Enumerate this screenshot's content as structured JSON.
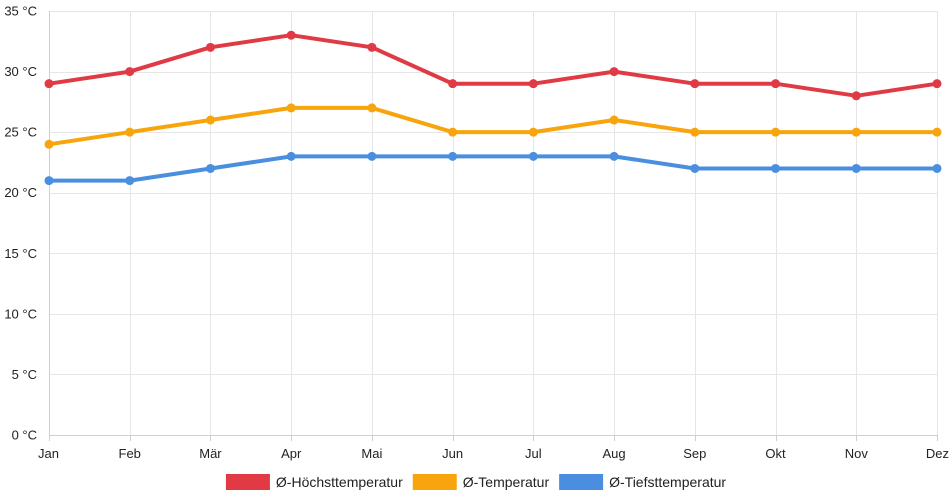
{
  "chart_data": {
    "type": "line",
    "categories": [
      "Jan",
      "Feb",
      "Mär",
      "Apr",
      "Mai",
      "Jun",
      "Jul",
      "Aug",
      "Sep",
      "Okt",
      "Nov",
      "Dez"
    ],
    "y_ticks": [
      "0 °C",
      "5 °C",
      "10 °C",
      "15 °C",
      "20 °C",
      "25 °C",
      "30 °C",
      "35 °C"
    ],
    "ylim": [
      0,
      35
    ],
    "y_step": 5,
    "grid": true,
    "legend_position": "bottom-center",
    "series": [
      {
        "name": "Ø-Höchsttemperatur",
        "color": "#e03a45",
        "values": [
          29,
          30,
          32,
          33,
          32,
          29,
          29,
          30,
          29,
          29,
          28,
          29
        ]
      },
      {
        "name": "Ø-Temperatur",
        "color": "#f8a50d",
        "values": [
          24,
          25,
          26,
          27,
          27,
          25,
          25,
          26,
          25,
          25,
          25,
          25
        ]
      },
      {
        "name": "Ø-Tiefsttemperatur",
        "color": "#4a8fdf",
        "values": [
          21,
          21,
          22,
          23,
          23,
          23,
          23,
          23,
          22,
          22,
          22,
          22
        ]
      }
    ]
  }
}
